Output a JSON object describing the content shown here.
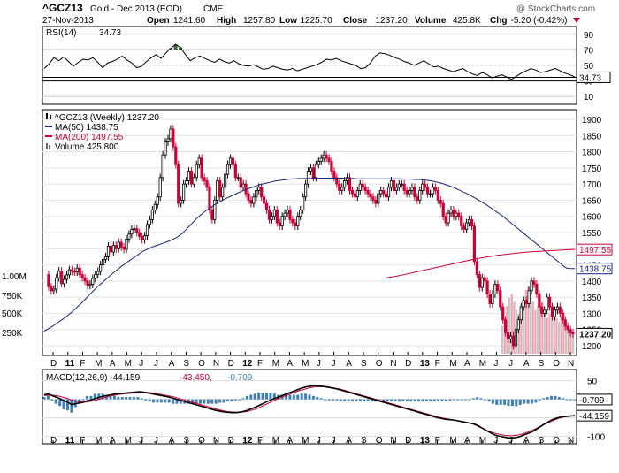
{
  "header": {
    "symbol": "^GCZ13",
    "name": "Gold - Dec 2013 (EOD)",
    "exchange": "CME",
    "date": "27-Nov-2013",
    "stats": [
      {
        "label": "Open",
        "value": "1241.60"
      },
      {
        "label": "High",
        "value": "1257.80"
      },
      {
        "label": "Low",
        "value": "1225.70"
      },
      {
        "label": "Close",
        "value": "1237.20"
      },
      {
        "label": "Volume",
        "value": "425.8K"
      },
      {
        "label": "Chg",
        "value": "-5.20 (-0.42%)"
      }
    ],
    "watermark": "@ StockCharts.com"
  },
  "colors": {
    "up": "#000000",
    "down": "#cc0033",
    "ma50": "#1a237e",
    "ma200": "#cc0033",
    "volume": "#e8a8b4",
    "macd_hist": "#3d7fb5",
    "rsi_overbought": "#3a6b3a",
    "rsi_oversold": "#8b3a3a"
  },
  "chart_data": [
    {
      "type": "line",
      "title": "RSI(14) 34.73",
      "legend": "RSI(14)",
      "legend_value": "34.73",
      "y_ticks": [
        "90",
        "70",
        "50",
        "30",
        "10"
      ],
      "current_label": "34.73",
      "ylim": [
        0,
        100
      ],
      "values": [
        46,
        52,
        60,
        56,
        61,
        55,
        49,
        54,
        58,
        57,
        60,
        54,
        47,
        53,
        55,
        58,
        62,
        57,
        53,
        47,
        49,
        55,
        60,
        64,
        59,
        66,
        72,
        77,
        73,
        64,
        56,
        60,
        62,
        59,
        56,
        54,
        58,
        55,
        53,
        56,
        52,
        50,
        49,
        51,
        48,
        45,
        46,
        49,
        47,
        45,
        44,
        46,
        43,
        45,
        47,
        49,
        51,
        54,
        58,
        57,
        59,
        56,
        54,
        52,
        50,
        46,
        47,
        53,
        62,
        66,
        65,
        63,
        60,
        58,
        55,
        53,
        50,
        53,
        56,
        52,
        48,
        49,
        46,
        44,
        42,
        44,
        46,
        42,
        39,
        37,
        41,
        38,
        34,
        36,
        38,
        35,
        32,
        36,
        40,
        43,
        46,
        44,
        41,
        42,
        44,
        46,
        43,
        40,
        38,
        35
      ]
    },
    {
      "type": "line",
      "title": "^GCZ13 (Weekly) 1237.20",
      "legend": [
        {
          "label": "^GCZ13 (Weekly) 1237.20",
          "icon": "candle"
        },
        {
          "label": "MA(50) 1438.75",
          "icon": "line-blue"
        },
        {
          "label": "MA(200) 1497.55",
          "icon": "line-red"
        },
        {
          "label": "Volume 425,800",
          "icon": "bars"
        }
      ],
      "y_ticks": [
        "1900",
        "1850",
        "1800",
        "1750",
        "1700",
        "1650",
        "1600",
        "1550",
        "1500",
        "1450",
        "1400",
        "1350",
        "1300",
        "1250",
        "1200"
      ],
      "volume_ticks": [
        "1.00M",
        "750K",
        "500K",
        "250K"
      ],
      "ylim": [
        1170,
        1930
      ],
      "price_boxes": [
        {
          "label": "1497.55",
          "value": 1497.55,
          "color": "#cc0033"
        },
        {
          "label": "1438.75",
          "value": 1438.75,
          "color": "#1a237e"
        },
        {
          "label": "1237.20",
          "value": 1237.2,
          "color": "#000000"
        }
      ],
      "x_labels": [
        "D",
        "11",
        "F",
        "M",
        "A",
        "M",
        "J",
        "J",
        "A",
        "S",
        "O",
        "N",
        "D",
        "12",
        "F",
        "M",
        "A",
        "M",
        "J",
        "J",
        "A",
        "S",
        "O",
        "N",
        "D",
        "13",
        "F",
        "M",
        "A",
        "M",
        "J",
        "J",
        "A",
        "S",
        "O",
        "N"
      ],
      "close": [
        1420,
        1382,
        1370,
        1375,
        1410,
        1431,
        1392,
        1405,
        1419,
        1435,
        1430,
        1428,
        1440,
        1420,
        1410,
        1400,
        1386,
        1390,
        1408,
        1420,
        1430,
        1450,
        1467,
        1475,
        1508,
        1490,
        1510,
        1500,
        1520,
        1505,
        1498,
        1530,
        1545,
        1560,
        1562,
        1550,
        1538,
        1528,
        1540,
        1575,
        1590,
        1620,
        1637,
        1660,
        1720,
        1790,
        1830,
        1840,
        1870,
        1815,
        1760,
        1640,
        1650,
        1700,
        1710,
        1740,
        1700,
        1720,
        1760,
        1780,
        1720,
        1710,
        1690,
        1620,
        1590,
        1650,
        1710,
        1660,
        1690,
        1730,
        1760,
        1780,
        1760,
        1720,
        1720,
        1690,
        1700,
        1670,
        1650,
        1640,
        1660,
        1680,
        1690,
        1660,
        1640,
        1620,
        1590,
        1600,
        1620,
        1580,
        1570,
        1600,
        1610,
        1620,
        1590,
        1580,
        1570,
        1600,
        1620,
        1660,
        1700,
        1740,
        1750,
        1720,
        1760,
        1770,
        1780,
        1790,
        1780,
        1770,
        1740,
        1720,
        1700,
        1680,
        1690,
        1710,
        1720,
        1680,
        1670,
        1660,
        1680,
        1700,
        1690,
        1680,
        1670,
        1660,
        1650,
        1640,
        1670,
        1680,
        1670,
        1660,
        1690,
        1710,
        1680,
        1690,
        1700,
        1700,
        1680,
        1670,
        1680,
        1690,
        1660,
        1650,
        1680,
        1700,
        1690,
        1670,
        1670,
        1690,
        1680,
        1650,
        1640,
        1600,
        1580,
        1610,
        1620,
        1600,
        1610,
        1600,
        1570,
        1560,
        1580,
        1590,
        1570,
        1460,
        1420,
        1380,
        1410,
        1400,
        1360,
        1330,
        1360,
        1390,
        1370,
        1320,
        1280,
        1240,
        1220,
        1230,
        1200,
        1250,
        1280,
        1320,
        1340,
        1330,
        1370,
        1400,
        1390,
        1360,
        1320,
        1300,
        1310,
        1350,
        1320,
        1290,
        1310,
        1320,
        1300,
        1280,
        1260,
        1250,
        1240,
        1237
      ],
      "ma50": [
        1245,
        1250,
        1255,
        1260,
        1266,
        1272,
        1278,
        1284,
        1290,
        1297,
        1304,
        1312,
        1320,
        1328,
        1336,
        1345,
        1354,
        1363,
        1372,
        1380,
        1388,
        1395,
        1403,
        1410,
        1418,
        1425,
        1432,
        1439,
        1446,
        1452,
        1458,
        1464,
        1470,
        1476,
        1482,
        1488,
        1493,
        1497,
        1501,
        1505,
        1508,
        1511,
        1514,
        1517,
        1520,
        1523,
        1527,
        1531,
        1535,
        1541,
        1548,
        1556,
        1565,
        1574,
        1583,
        1592,
        1600,
        1607,
        1614,
        1620,
        1626,
        1632,
        1638,
        1643,
        1648,
        1652,
        1656,
        1660,
        1664,
        1668,
        1672,
        1676,
        1680,
        1683,
        1686,
        1689,
        1692,
        1695,
        1698,
        1700,
        1702,
        1704,
        1706,
        1708,
        1710,
        1711,
        1712,
        1713,
        1714,
        1715,
        1716,
        1716,
        1717,
        1717,
        1717,
        1717,
        1717,
        1718,
        1718,
        1718,
        1718,
        1718,
        1718,
        1718,
        1718,
        1718,
        1718,
        1718,
        1718,
        1717,
        1717,
        1717,
        1717,
        1716,
        1716,
        1716,
        1716,
        1716,
        1716,
        1716,
        1716,
        1716,
        1716,
        1716,
        1716,
        1716,
        1716,
        1716,
        1716,
        1716,
        1715,
        1715,
        1715,
        1715,
        1714,
        1714,
        1714,
        1713,
        1712,
        1711,
        1710,
        1708,
        1706,
        1704,
        1702,
        1699,
        1696,
        1693,
        1690,
        1686,
        1682,
        1678,
        1674,
        1670,
        1666,
        1661,
        1656,
        1651,
        1646,
        1641,
        1636,
        1630,
        1624,
        1618,
        1612,
        1606,
        1600,
        1593,
        1586,
        1579,
        1572,
        1565,
        1558,
        1551,
        1544,
        1537,
        1530,
        1523,
        1516,
        1509,
        1502,
        1495,
        1488,
        1481,
        1474,
        1467,
        1460,
        1453,
        1446,
        1440,
        1439,
        1438.75,
        1438.75
      ],
      "ma200": [
        1410,
        1413,
        1416,
        1420,
        1424,
        1428,
        1432,
        1436,
        1440,
        1444,
        1448,
        1452,
        1456,
        1460,
        1464,
        1468,
        1471,
        1474,
        1477,
        1480,
        1482,
        1484,
        1486,
        1488,
        1490,
        1491,
        1492,
        1493,
        1494,
        1495,
        1496,
        1497,
        1497.55
      ],
      "volume_recent": [
        0.7,
        0.9,
        1.2,
        1.4,
        1.5,
        1.3,
        1.1,
        1.0,
        1.2,
        1.4,
        1.6,
        1.7,
        1.5,
        1.3,
        1.1,
        1.2,
        1.4,
        1.3,
        1.1,
        0.9,
        1.0,
        1.2,
        1.1,
        0.9,
        0.8,
        0.95,
        1.05,
        0.85,
        0.7,
        0.6,
        0.55
      ]
    },
    {
      "type": "bar",
      "title": "MACD(12,26,9) -44.159, -43.450, -0.709",
      "legend": [
        {
          "label": "MACD(12,26,9) -44.159,",
          "color": "#000000"
        },
        {
          "label": "-43.450,",
          "color": "#cc0033"
        },
        {
          "label": "-0.709",
          "color": "#3d7fb5"
        }
      ],
      "y_ticks": [
        "50",
        "0",
        "-50",
        "-100"
      ],
      "ylim": [
        -120,
        80
      ],
      "current_labels": [
        "-0.709",
        "-44.159"
      ],
      "macd": [
        12,
        14,
        10,
        6,
        2,
        -4,
        -8,
        -14,
        -12,
        -10,
        -8,
        -4,
        -2,
        2,
        5,
        8,
        10,
        12,
        14,
        15,
        16,
        17,
        18,
        19,
        20,
        20,
        18,
        16,
        14,
        12,
        10,
        8,
        6,
        3,
        0,
        -3,
        -6,
        -9,
        -12,
        -15,
        -18,
        -21,
        -24,
        -27,
        -30,
        -32,
        -34,
        -35,
        -36,
        -36,
        -35,
        -33,
        -30,
        -26,
        -22,
        -17,
        -12,
        -7,
        -2,
        2,
        6,
        10,
        14,
        18,
        22,
        26,
        30,
        33,
        35,
        36,
        36,
        35,
        34,
        32,
        30,
        28,
        25,
        22,
        19,
        16,
        13,
        10,
        7,
        4,
        1,
        -2,
        -5,
        -8,
        -11,
        -14,
        -17,
        -20,
        -23,
        -26,
        -29,
        -32,
        -35,
        -38,
        -41,
        -44,
        -47,
        -50,
        -52,
        -54,
        -55,
        -56,
        -58,
        -60,
        -62,
        -64,
        -66,
        -70,
        -76,
        -82,
        -88,
        -94,
        -98,
        -100,
        -102,
        -104,
        -104,
        -103,
        -100,
        -96,
        -92,
        -88,
        -82,
        -75,
        -68,
        -62,
        -56,
        -52,
        -49,
        -47,
        -46,
        -45,
        -44.2
      ],
      "signal": [
        10,
        11,
        11,
        10,
        8,
        5,
        2,
        -2,
        -5,
        -7,
        -8,
        -7,
        -5,
        -3,
        0,
        3,
        6,
        9,
        11,
        13,
        14,
        15,
        16,
        17,
        18,
        19,
        19,
        18,
        17,
        15,
        13,
        11,
        9,
        7,
        4,
        1,
        -2,
        -5,
        -8,
        -11,
        -14,
        -17,
        -20,
        -23,
        -26,
        -29,
        -31,
        -33,
        -34,
        -35,
        -35,
        -34,
        -33,
        -30,
        -27,
        -23,
        -18,
        -13,
        -8,
        -3,
        2,
        6,
        10,
        14,
        18,
        22,
        25,
        28,
        31,
        33,
        34,
        34,
        34,
        33,
        31,
        29,
        27,
        24,
        21,
        18,
        15,
        12,
        9,
        6,
        3,
        0,
        -3,
        -6,
        -9,
        -12,
        -15,
        -18,
        -21,
        -24,
        -27,
        -30,
        -33,
        -36,
        -39,
        -42,
        -45,
        -48,
        -50,
        -52,
        -54,
        -56,
        -58,
        -60,
        -62,
        -64,
        -67,
        -72,
        -77,
        -82,
        -86,
        -90,
        -93,
        -95,
        -97,
        -98,
        -98,
        -97,
        -95,
        -92,
        -88,
        -84,
        -79,
        -74,
        -69,
        -64,
        -59,
        -55,
        -51,
        -48,
        -46,
        -44.5,
        -43.45
      ]
    }
  ]
}
